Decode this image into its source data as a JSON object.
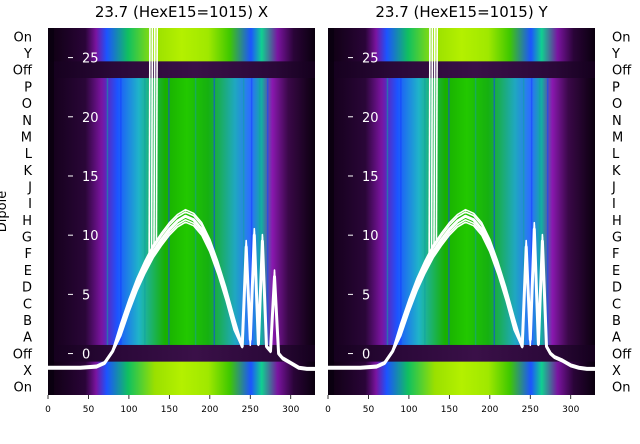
{
  "chart_data": [
    {
      "type": "heatmap",
      "title": "23.7 (HexE15=1015) X",
      "x_ticks": [
        0,
        50,
        100,
        150,
        200,
        250,
        300
      ],
      "xlim": [
        0,
        330
      ],
      "y_overlay_ticks": [
        0,
        5,
        10,
        15,
        20,
        25
      ],
      "y_overlay_lim": [
        -3.5,
        27.5
      ],
      "row_labels": [
        "On",
        "Y",
        "Off",
        "P",
        "O",
        "N",
        "M",
        "L",
        "K",
        "J",
        "I",
        "H",
        "G",
        "F",
        "E",
        "D",
        "C",
        "B",
        "A",
        "Off",
        "X",
        "On"
      ],
      "ylabel": "Dipole",
      "overlay_series": {
        "x": [
          0,
          40,
          60,
          70,
          80,
          90,
          100,
          110,
          120,
          130,
          140,
          150,
          160,
          170,
          180,
          190,
          200,
          210,
          220,
          230,
          240,
          245,
          250,
          255,
          260,
          265,
          270,
          275,
          280,
          285,
          290,
          300,
          310,
          320,
          330
        ],
        "y": [
          -1.2,
          -1.2,
          -1.1,
          -0.8,
          0.2,
          2.0,
          4.0,
          5.8,
          7.3,
          8.6,
          9.6,
          10.5,
          11.2,
          11.6,
          11.3,
          10.5,
          9.1,
          7.2,
          5.0,
          2.5,
          0.6,
          9.0,
          1.2,
          10.0,
          0.8,
          9.5,
          0.6,
          0.2,
          6.5,
          0.0,
          -0.4,
          -0.8,
          -1.2,
          -1.3,
          -1.3
        ]
      }
    },
    {
      "type": "heatmap",
      "title": "23.7 (HexE15=1015) Y",
      "x_ticks": [
        0,
        50,
        100,
        150,
        200,
        250,
        300
      ],
      "xlim": [
        0,
        330
      ],
      "y_overlay_ticks": [
        0,
        5,
        10,
        15,
        20,
        25
      ],
      "y_overlay_lim": [
        -3.5,
        27.5
      ],
      "row_labels": [
        "On",
        "Y",
        "Off",
        "P",
        "O",
        "N",
        "M",
        "L",
        "K",
        "J",
        "I",
        "H",
        "G",
        "F",
        "E",
        "D",
        "C",
        "B",
        "A",
        "Off",
        "X",
        "On"
      ],
      "ylabel": "",
      "overlay_series": {
        "x": [
          0,
          40,
          60,
          70,
          80,
          90,
          100,
          110,
          120,
          130,
          140,
          150,
          160,
          170,
          180,
          190,
          200,
          210,
          220,
          230,
          240,
          245,
          250,
          255,
          260,
          265,
          270,
          275,
          280,
          290,
          300,
          310,
          320,
          330
        ],
        "y": [
          -1.2,
          -1.2,
          -1.1,
          -0.8,
          0.2,
          2.0,
          4.0,
          5.8,
          7.3,
          8.6,
          9.6,
          10.5,
          11.2,
          11.6,
          11.3,
          10.5,
          9.1,
          7.2,
          5.0,
          2.5,
          0.6,
          9.0,
          1.2,
          10.5,
          0.8,
          9.5,
          0.6,
          0.0,
          -0.3,
          -0.6,
          -1.0,
          -1.2,
          -1.3,
          -1.3
        ]
      }
    }
  ],
  "colors": {
    "heat_low": "#120018",
    "heat_purple": "#7a14a0",
    "heat_blue": "#1c54ff",
    "heat_cyan": "#1fb4c8",
    "heat_green": "#18c000",
    "heat_lime": "#b4f000",
    "overlay": "#ffffff"
  }
}
